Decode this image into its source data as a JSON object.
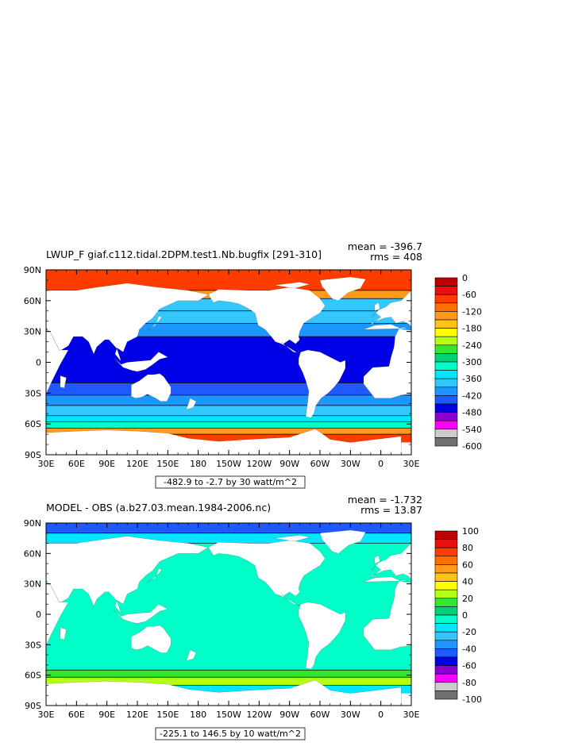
{
  "panels": [
    {
      "title": "LWUP_F giaf.c112.tidal.2DPM.test1.Nb.bugfix [291-310]",
      "mean_text": "mean = -396.7",
      "rms_text": "rms = 408",
      "range_text": "-482.9 to -2.7 by 30 watt/m^2",
      "lat_labels": [
        "90N",
        "60N",
        "30N",
        "0",
        "30S",
        "60S",
        "90S"
      ],
      "lon_labels": [
        "30E",
        "60E",
        "90E",
        "120E",
        "150E",
        "180",
        "150W",
        "120W",
        "90W",
        "60W",
        "30W",
        "0",
        "30E"
      ],
      "colorbar_labels": [
        "0",
        "-60",
        "-120",
        "-180",
        "-240",
        "-300",
        "-360",
        "-420",
        "-480",
        "-540",
        "-600"
      ],
      "colors": [
        "#c00000",
        "#e61010",
        "#ff3c00",
        "#ff6e00",
        "#ff9a1a",
        "#ffc21a",
        "#ffff00",
        "#b4ff1a",
        "#32e632",
        "#00d278",
        "#00ffc8",
        "#00e6ff",
        "#32c8ff",
        "#1e96ff",
        "#1e5aff",
        "#0000e6",
        "#8c00d2",
        "#ff00ff",
        "#cccccc",
        "#707070"
      ],
      "ocean_bands": [
        {
          "lat": [
            90,
            70
          ],
          "color": "#ff3c00"
        },
        {
          "lat": [
            70,
            62
          ],
          "color": "#ff9a1a"
        },
        {
          "lat": [
            62,
            50
          ],
          "color": "#32c8ff"
        },
        {
          "lat": [
            50,
            38
          ],
          "color": "#32c8ff"
        },
        {
          "lat": [
            38,
            25
          ],
          "color": "#1e96ff"
        },
        {
          "lat": [
            25,
            -20
          ],
          "color": "#0000e6"
        },
        {
          "lat": [
            -20,
            -32
          ],
          "color": "#1e5aff"
        },
        {
          "lat": [
            -32,
            -42
          ],
          "color": "#1e96ff"
        },
        {
          "lat": [
            -42,
            -52
          ],
          "color": "#32c8ff"
        },
        {
          "lat": [
            -52,
            -58
          ],
          "color": "#00e6ff"
        },
        {
          "lat": [
            -58,
            -64
          ],
          "color": "#00ffc8"
        },
        {
          "lat": [
            -64,
            -70
          ],
          "color": "#ff9a1a"
        },
        {
          "lat": [
            -70,
            -78
          ],
          "color": "#ff3c00"
        }
      ]
    },
    {
      "title": "MODEL - OBS (a.b27.03.mean.1984-2006.nc)",
      "mean_text": "mean = -1.732",
      "rms_text": "rms = 13.87",
      "range_text": "-225.1 to 146.5 by 10 watt/m^2",
      "lat_labels": [
        "90N",
        "60N",
        "30N",
        "0",
        "30S",
        "60S",
        "90S"
      ],
      "lon_labels": [
        "30E",
        "60E",
        "90E",
        "120E",
        "150E",
        "180",
        "150W",
        "120W",
        "90W",
        "60W",
        "30W",
        "0",
        "30E"
      ],
      "colorbar_labels": [
        "100",
        "80",
        "60",
        "40",
        "20",
        "0",
        "-20",
        "-40",
        "-60",
        "-80",
        "-100"
      ],
      "colors": [
        "#c00000",
        "#e61010",
        "#ff3c00",
        "#ff6e00",
        "#ff9a1a",
        "#ffc21a",
        "#ffff00",
        "#b4ff1a",
        "#32e632",
        "#00d278",
        "#00ffc8",
        "#00e6ff",
        "#32c8ff",
        "#1e96ff",
        "#1e5aff",
        "#0000e6",
        "#8c00d2",
        "#ff00ff",
        "#cccccc",
        "#707070"
      ],
      "ocean_bands": [
        {
          "lat": [
            90,
            80
          ],
          "color": "#1e5aff"
        },
        {
          "lat": [
            80,
            70
          ],
          "color": "#00e6ff"
        },
        {
          "lat": [
            70,
            -55
          ],
          "color": "#00ffc8"
        },
        {
          "lat": [
            -55,
            -62
          ],
          "color": "#32e632"
        },
        {
          "lat": [
            -62,
            -70
          ],
          "color": "#b4ff1a"
        },
        {
          "lat": [
            -70,
            -78
          ],
          "color": "#00e6ff"
        }
      ]
    }
  ]
}
